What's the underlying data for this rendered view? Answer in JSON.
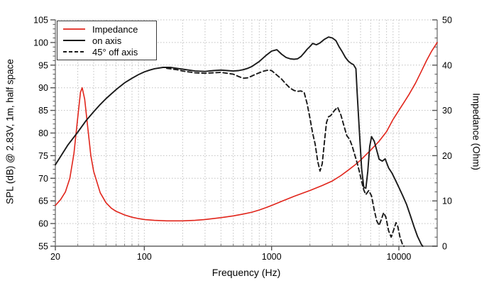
{
  "figure": {
    "y_left_axis": {
      "label": "SPL (dB) @ 2.83V, 1m, half space"
    },
    "y_right_axis": {
      "label": "Impedance (Ohm)"
    },
    "x_axis": {
      "label": "Frequency (Hz)"
    },
    "legend": [
      {
        "label": "Impedance",
        "color": "#e1251b",
        "style": "solid"
      },
      {
        "label": "on axis",
        "color": "#1a1a1a",
        "style": "solid"
      },
      {
        "label": "45° off axis",
        "color": "#1a1a1a",
        "style": "dashed"
      }
    ],
    "colors": {
      "grid": "#c0c0c0",
      "axis": "#8a8a8a",
      "text": "#000000",
      "impedance": "#e1251b",
      "spl": "#1a1a1a",
      "background": "#ffffff"
    }
  },
  "chart_data": {
    "type": "line",
    "title": "",
    "xlabel": "Frequency (Hz)",
    "ylabel_left": "SPL (dB) @ 2.83V, 1m, half space",
    "ylabel_right": "Impedance (Ohm)",
    "x_scale": "log",
    "x_range": [
      20,
      20000
    ],
    "y_left_range": [
      55,
      105
    ],
    "y_right_range": [
      0,
      50
    ],
    "x_tick_labels": [
      20,
      100,
      1000,
      10000
    ],
    "y_left_ticks": [
      55,
      60,
      65,
      70,
      75,
      80,
      85,
      90,
      95,
      100,
      105
    ],
    "y_right_ticks": [
      0,
      10,
      20,
      30,
      40,
      50
    ],
    "y_left_minor_step": 1,
    "y_right_minor_step": 2,
    "grid": true,
    "legend_position": "top-left",
    "series": [
      {
        "name": "Impedance",
        "axis": "right",
        "unit": "Ohm",
        "color": "#e1251b",
        "style": "solid",
        "points": [
          [
            20,
            9
          ],
          [
            22,
            10.3
          ],
          [
            24,
            12
          ],
          [
            26,
            15
          ],
          [
            28,
            20.5
          ],
          [
            30,
            28.5
          ],
          [
            31.5,
            34
          ],
          [
            32.5,
            35
          ],
          [
            34,
            32.5
          ],
          [
            36,
            26
          ],
          [
            38,
            20
          ],
          [
            40,
            16.5
          ],
          [
            45,
            11.8
          ],
          [
            50,
            9.6
          ],
          [
            55,
            8.4
          ],
          [
            60,
            7.7
          ],
          [
            70,
            6.9
          ],
          [
            80,
            6.4
          ],
          [
            90,
            6.1
          ],
          [
            100,
            5.9
          ],
          [
            120,
            5.7
          ],
          [
            150,
            5.6
          ],
          [
            200,
            5.6
          ],
          [
            250,
            5.7
          ],
          [
            300,
            5.9
          ],
          [
            400,
            6.3
          ],
          [
            500,
            6.7
          ],
          [
            600,
            7.1
          ],
          [
            700,
            7.5
          ],
          [
            800,
            8
          ],
          [
            900,
            8.5
          ],
          [
            1000,
            9
          ],
          [
            1200,
            9.9
          ],
          [
            1500,
            11
          ],
          [
            2000,
            12.3
          ],
          [
            2500,
            13.4
          ],
          [
            3000,
            14.4
          ],
          [
            3500,
            15.6
          ],
          [
            4000,
            16.8
          ],
          [
            4500,
            17.9
          ],
          [
            5000,
            19
          ],
          [
            6000,
            21.2
          ],
          [
            7000,
            23.2
          ],
          [
            8000,
            25.3
          ],
          [
            9000,
            28
          ],
          [
            10000,
            30
          ],
          [
            11000,
            31.8
          ],
          [
            12000,
            33.5
          ],
          [
            13500,
            36
          ],
          [
            15000,
            38.6
          ],
          [
            16500,
            41
          ],
          [
            18000,
            43
          ],
          [
            20000,
            45
          ]
        ]
      },
      {
        "name": "on axis",
        "axis": "left",
        "unit": "dB",
        "color": "#1a1a1a",
        "style": "solid",
        "points": [
          [
            20,
            73
          ],
          [
            25,
            77.3
          ],
          [
            30,
            80.2
          ],
          [
            35,
            82.8
          ],
          [
            40,
            84.7
          ],
          [
            45,
            86.3
          ],
          [
            50,
            87.6
          ],
          [
            60,
            89.6
          ],
          [
            70,
            91.1
          ],
          [
            80,
            92.1
          ],
          [
            90,
            92.9
          ],
          [
            100,
            93.5
          ],
          [
            110,
            93.9
          ],
          [
            120,
            94.2
          ],
          [
            140,
            94.5
          ],
          [
            160,
            94.5
          ],
          [
            180,
            94.3
          ],
          [
            200,
            94.1
          ],
          [
            250,
            93.7
          ],
          [
            300,
            93.6
          ],
          [
            350,
            93.8
          ],
          [
            400,
            93.9
          ],
          [
            450,
            93.8
          ],
          [
            500,
            93.7
          ],
          [
            550,
            93.8
          ],
          [
            600,
            94
          ],
          [
            650,
            94.3
          ],
          [
            700,
            94.7
          ],
          [
            800,
            95.8
          ],
          [
            900,
            97.1
          ],
          [
            1000,
            98.1
          ],
          [
            1100,
            98.4
          ],
          [
            1200,
            97.4
          ],
          [
            1300,
            96.7
          ],
          [
            1400,
            96.4
          ],
          [
            1500,
            96.3
          ],
          [
            1600,
            96.4
          ],
          [
            1700,
            96.9
          ],
          [
            1800,
            97.7
          ],
          [
            1900,
            98.5
          ],
          [
            2000,
            99.1
          ],
          [
            2100,
            99.8
          ],
          [
            2250,
            99.5
          ],
          [
            2400,
            99.9
          ],
          [
            2600,
            100.7
          ],
          [
            2800,
            101.2
          ],
          [
            3000,
            101
          ],
          [
            3200,
            100.4
          ],
          [
            3400,
            99
          ],
          [
            3600,
            97.9
          ],
          [
            3800,
            96.7
          ],
          [
            4000,
            95.9
          ],
          [
            4200,
            95.4
          ],
          [
            4400,
            95.1
          ],
          [
            4600,
            94.2
          ],
          [
            4700,
            89
          ],
          [
            4900,
            80
          ],
          [
            5100,
            72
          ],
          [
            5300,
            68
          ],
          [
            5500,
            67.8
          ],
          [
            5700,
            71.5
          ],
          [
            5900,
            77
          ],
          [
            6100,
            79.2
          ],
          [
            6400,
            78.2
          ],
          [
            6700,
            76.2
          ],
          [
            7000,
            74.2
          ],
          [
            7400,
            73.8
          ],
          [
            7800,
            74.3
          ],
          [
            8300,
            72.3
          ],
          [
            8800,
            71.2
          ],
          [
            9400,
            69.6
          ],
          [
            10000,
            68
          ],
          [
            10700,
            66.2
          ],
          [
            11500,
            64.2
          ],
          [
            12300,
            61.8
          ],
          [
            13200,
            59.2
          ],
          [
            14000,
            57.2
          ],
          [
            15000,
            55.4
          ],
          [
            15400,
            55
          ]
        ]
      },
      {
        "name": "45° off axis",
        "axis": "left",
        "unit": "dB",
        "color": "#1a1a1a",
        "style": "dashed",
        "points": [
          [
            150,
            94.3
          ],
          [
            180,
            94
          ],
          [
            200,
            93.7
          ],
          [
            250,
            93.3
          ],
          [
            300,
            93.2
          ],
          [
            350,
            93.3
          ],
          [
            400,
            93.4
          ],
          [
            450,
            93.2
          ],
          [
            500,
            93
          ],
          [
            550,
            92.5
          ],
          [
            600,
            92.1
          ],
          [
            650,
            92.2
          ],
          [
            700,
            92.6
          ],
          [
            750,
            93
          ],
          [
            800,
            93.3
          ],
          [
            850,
            93.6
          ],
          [
            900,
            93.8
          ],
          [
            950,
            93.9
          ],
          [
            1000,
            93.8
          ],
          [
            1100,
            92.8
          ],
          [
            1200,
            91.9
          ],
          [
            1300,
            90.8
          ],
          [
            1400,
            89.9
          ],
          [
            1500,
            89.4
          ],
          [
            1600,
            89.2
          ],
          [
            1700,
            89.3
          ],
          [
            1800,
            89
          ],
          [
            1900,
            86.5
          ],
          [
            2000,
            83.3
          ],
          [
            2100,
            80
          ],
          [
            2200,
            77.5
          ],
          [
            2300,
            73.8
          ],
          [
            2400,
            71.6
          ],
          [
            2500,
            73.2
          ],
          [
            2600,
            78
          ],
          [
            2700,
            82.3
          ],
          [
            2800,
            83.6
          ],
          [
            2900,
            83.8
          ],
          [
            3000,
            84.3
          ],
          [
            3100,
            84.9
          ],
          [
            3300,
            85.7
          ],
          [
            3500,
            84
          ],
          [
            3700,
            81.6
          ],
          [
            3900,
            79.4
          ],
          [
            4100,
            78.6
          ],
          [
            4300,
            77.1
          ],
          [
            4500,
            75.2
          ],
          [
            4700,
            73.4
          ],
          [
            4900,
            71.4
          ],
          [
            5100,
            69.3
          ],
          [
            5300,
            67.4
          ],
          [
            5500,
            66.4
          ],
          [
            5800,
            67.3
          ],
          [
            6100,
            66.1
          ],
          [
            6400,
            63
          ],
          [
            6700,
            60.6
          ],
          [
            7000,
            59.6
          ],
          [
            7300,
            61
          ],
          [
            7600,
            62.4
          ],
          [
            7900,
            61.4
          ],
          [
            8300,
            58.4
          ],
          [
            8700,
            57
          ],
          [
            9100,
            58.6
          ],
          [
            9500,
            60.2
          ],
          [
            9800,
            59.4
          ],
          [
            10200,
            57
          ],
          [
            10700,
            55.3
          ],
          [
            10950,
            55
          ]
        ]
      }
    ]
  }
}
